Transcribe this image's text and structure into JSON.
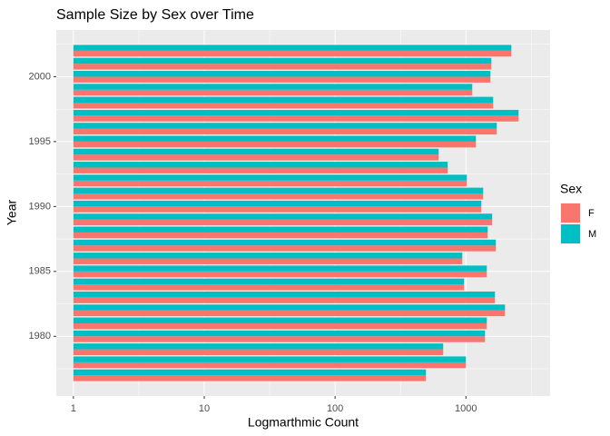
{
  "chart_data": {
    "type": "bar",
    "orientation": "horizontal",
    "title": "Sample Size by Sex over Time",
    "x_label": "Logmarthmic Count",
    "y_label": "Year",
    "legend_title": "Sex",
    "log_x": true,
    "grid": true,
    "legend_position": "right",
    "y": [
      1977,
      1978,
      1979,
      1980,
      1981,
      1982,
      1983,
      1984,
      1985,
      1986,
      1987,
      1988,
      1989,
      1990,
      1991,
      1992,
      1993,
      1994,
      1995,
      1996,
      1997,
      1998,
      1999,
      2000,
      2001,
      2002
    ],
    "series": [
      {
        "name": "F",
        "color": "#F8766D",
        "values": [
          495,
          1000,
          670,
          1400,
          1445,
          1990,
          1667,
          968,
          1445,
          938,
          1694,
          1468,
          1588,
          1312,
          1355,
          1016,
          726,
          619,
          1192,
          1722,
          2527,
          1616,
          1118,
          1540,
          1565,
          2225
        ]
      },
      {
        "name": "M",
        "color": "#00BFC4",
        "values": [
          495,
          1000,
          670,
          1400,
          1445,
          1990,
          1667,
          968,
          1445,
          938,
          1694,
          1468,
          1588,
          1312,
          1355,
          1016,
          726,
          619,
          1192,
          1722,
          2527,
          1616,
          1118,
          1540,
          1565,
          2225
        ]
      }
    ],
    "xlim": [
      0.74,
      4400
    ],
    "xticks": [
      1,
      10,
      100,
      1000
    ],
    "ylim": [
      1975.4,
      2003.6
    ],
    "yticks": [
      1980,
      1985,
      1990,
      1995,
      2000
    ]
  }
}
